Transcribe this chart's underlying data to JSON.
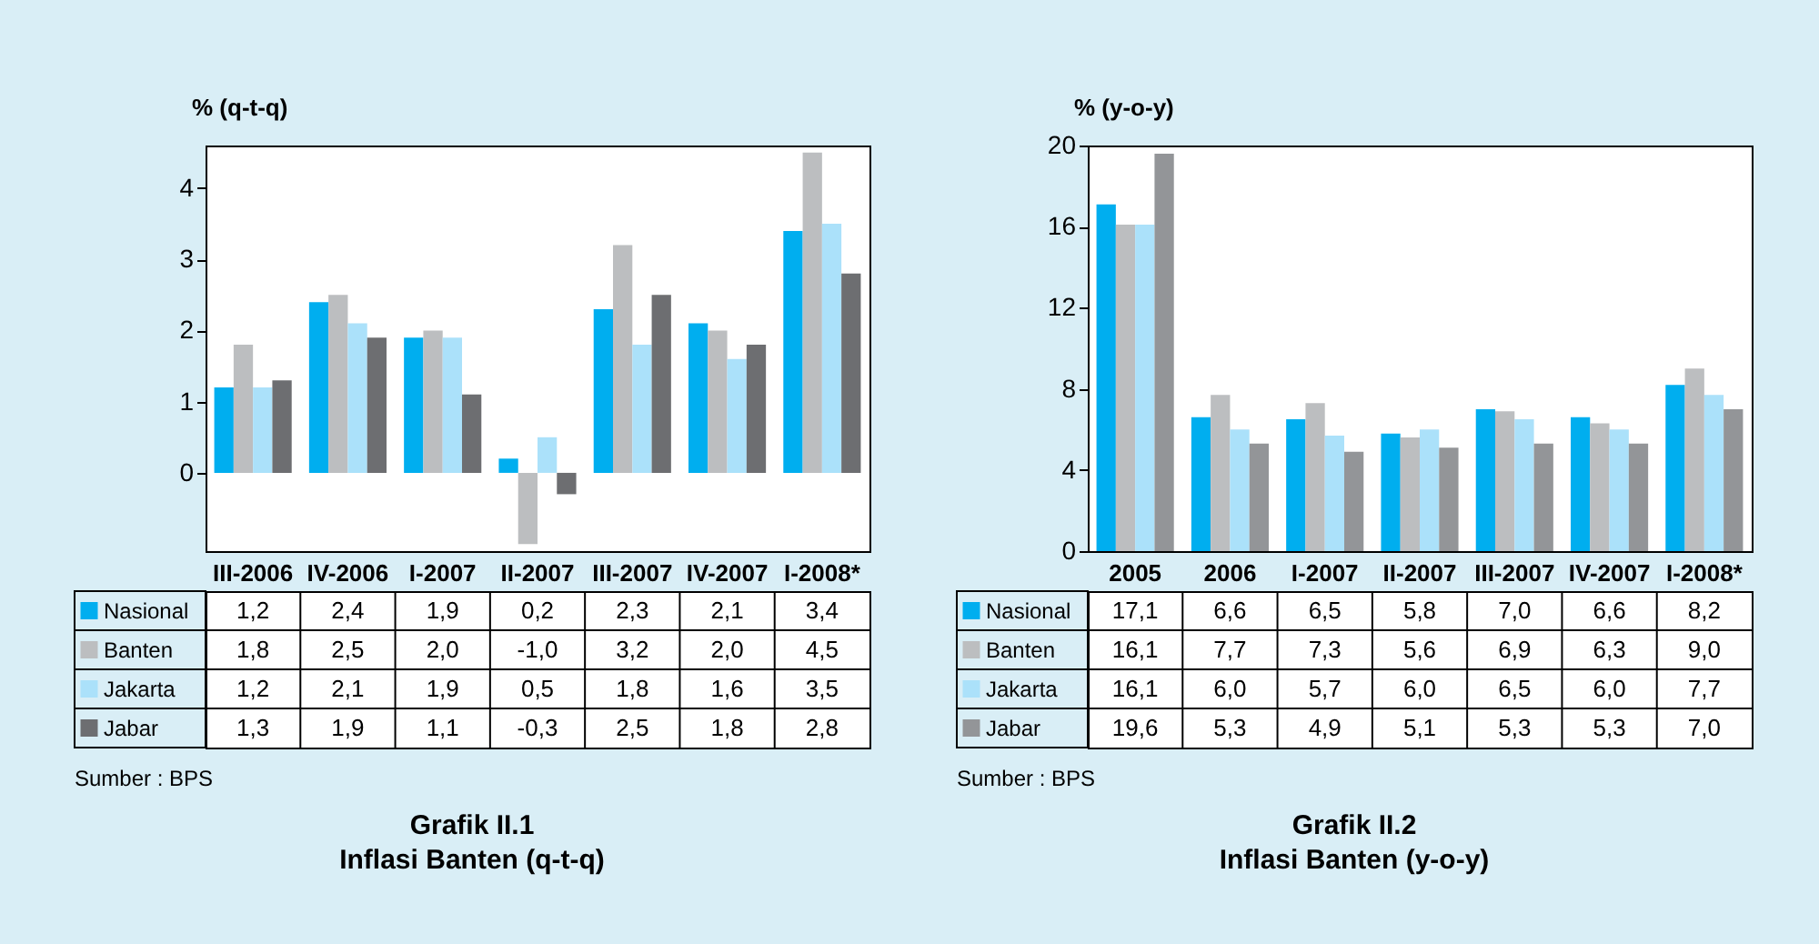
{
  "chart_data": [
    {
      "type": "bar",
      "title": "Grafik II.1",
      "subtitle": "Inflasi Banten (q-t-q)",
      "ylabel": "% (q-t-q)",
      "annotations": [
        "Sumber : BPS"
      ],
      "categories": [
        "III-2006",
        "IV-2006",
        "I-2007",
        "II-2007",
        "III-2007",
        "IV-2007",
        "I-2008*"
      ],
      "ylim": [
        -1.1,
        4.6
      ],
      "yticks": [
        0,
        1,
        2,
        3,
        4
      ],
      "grid": false,
      "legend": "bottom left",
      "series": [
        {
          "name": "Nasional",
          "color": "#00aeef",
          "values": [
            1.2,
            2.4,
            1.9,
            0.2,
            2.3,
            2.1,
            3.4
          ],
          "value_labels": [
            "1,2",
            "2,4",
            "1,9",
            "0,2",
            "2,3",
            "2,1",
            "3,4"
          ]
        },
        {
          "name": "Banten",
          "color": "#bcbec0",
          "values": [
            1.8,
            2.5,
            2.0,
            -1.0,
            3.2,
            2.0,
            4.5
          ],
          "value_labels": [
            "1,8",
            "2,5",
            "2,0",
            "-1,0",
            "3,2",
            "2,0",
            "4,5"
          ]
        },
        {
          "name": "Jakarta",
          "color": "#abe1fa",
          "values": [
            1.2,
            2.1,
            1.9,
            0.5,
            1.8,
            1.6,
            3.5
          ],
          "value_labels": [
            "1,2",
            "2,1",
            "1,9",
            "0,5",
            "1,8",
            "1,6",
            "3,5"
          ]
        },
        {
          "name": "Jabar",
          "color": "#6d6e71",
          "values": [
            1.3,
            1.9,
            1.1,
            -0.3,
            2.5,
            1.8,
            2.8
          ],
          "value_labels": [
            "1,3",
            "1,9",
            "1,1",
            "-0,3",
            "2,5",
            "1,8",
            "2,8"
          ]
        }
      ]
    },
    {
      "type": "bar",
      "title": "Grafik II.2",
      "subtitle": "Inflasi Banten (y-o-y)",
      "ylabel": "% (y-o-y)",
      "annotations": [
        "Sumber : BPS"
      ],
      "categories": [
        "2005",
        "2006",
        "I-2007",
        "II-2007",
        "III-2007",
        "IV-2007",
        "I-2008*"
      ],
      "ylim": [
        0,
        20
      ],
      "yticks": [
        0,
        4,
        8,
        12,
        16,
        20
      ],
      "grid": false,
      "legend": "bottom left",
      "series": [
        {
          "name": "Nasional",
          "color": "#00aeef",
          "values": [
            17.1,
            6.6,
            6.5,
            5.8,
            7.0,
            6.6,
            8.2
          ],
          "value_labels": [
            "17,1",
            "6,6",
            "6,5",
            "5,8",
            "7,0",
            "6,6",
            "8,2"
          ]
        },
        {
          "name": "Banten",
          "color": "#bcbec0",
          "values": [
            16.1,
            7.7,
            7.3,
            5.6,
            6.9,
            6.3,
            9.0
          ],
          "value_labels": [
            "16,1",
            "7,7",
            "7,3",
            "5,6",
            "6,9",
            "6,3",
            "9,0"
          ]
        },
        {
          "name": "Jakarta",
          "color": "#abe1fa",
          "values": [
            16.1,
            6.0,
            5.7,
            6.0,
            6.5,
            6.0,
            7.7
          ],
          "value_labels": [
            "16,1",
            "6,0",
            "5,7",
            "6,0",
            "6,5",
            "6,0",
            "7,7"
          ]
        },
        {
          "name": "Jabar",
          "color": "#939598",
          "values": [
            19.6,
            5.3,
            4.9,
            5.1,
            5.3,
            5.3,
            7.0
          ],
          "value_labels": [
            "19,6",
            "5,3",
            "4,9",
            "5,1",
            "5,3",
            "5,3",
            "7,0"
          ]
        }
      ]
    }
  ]
}
